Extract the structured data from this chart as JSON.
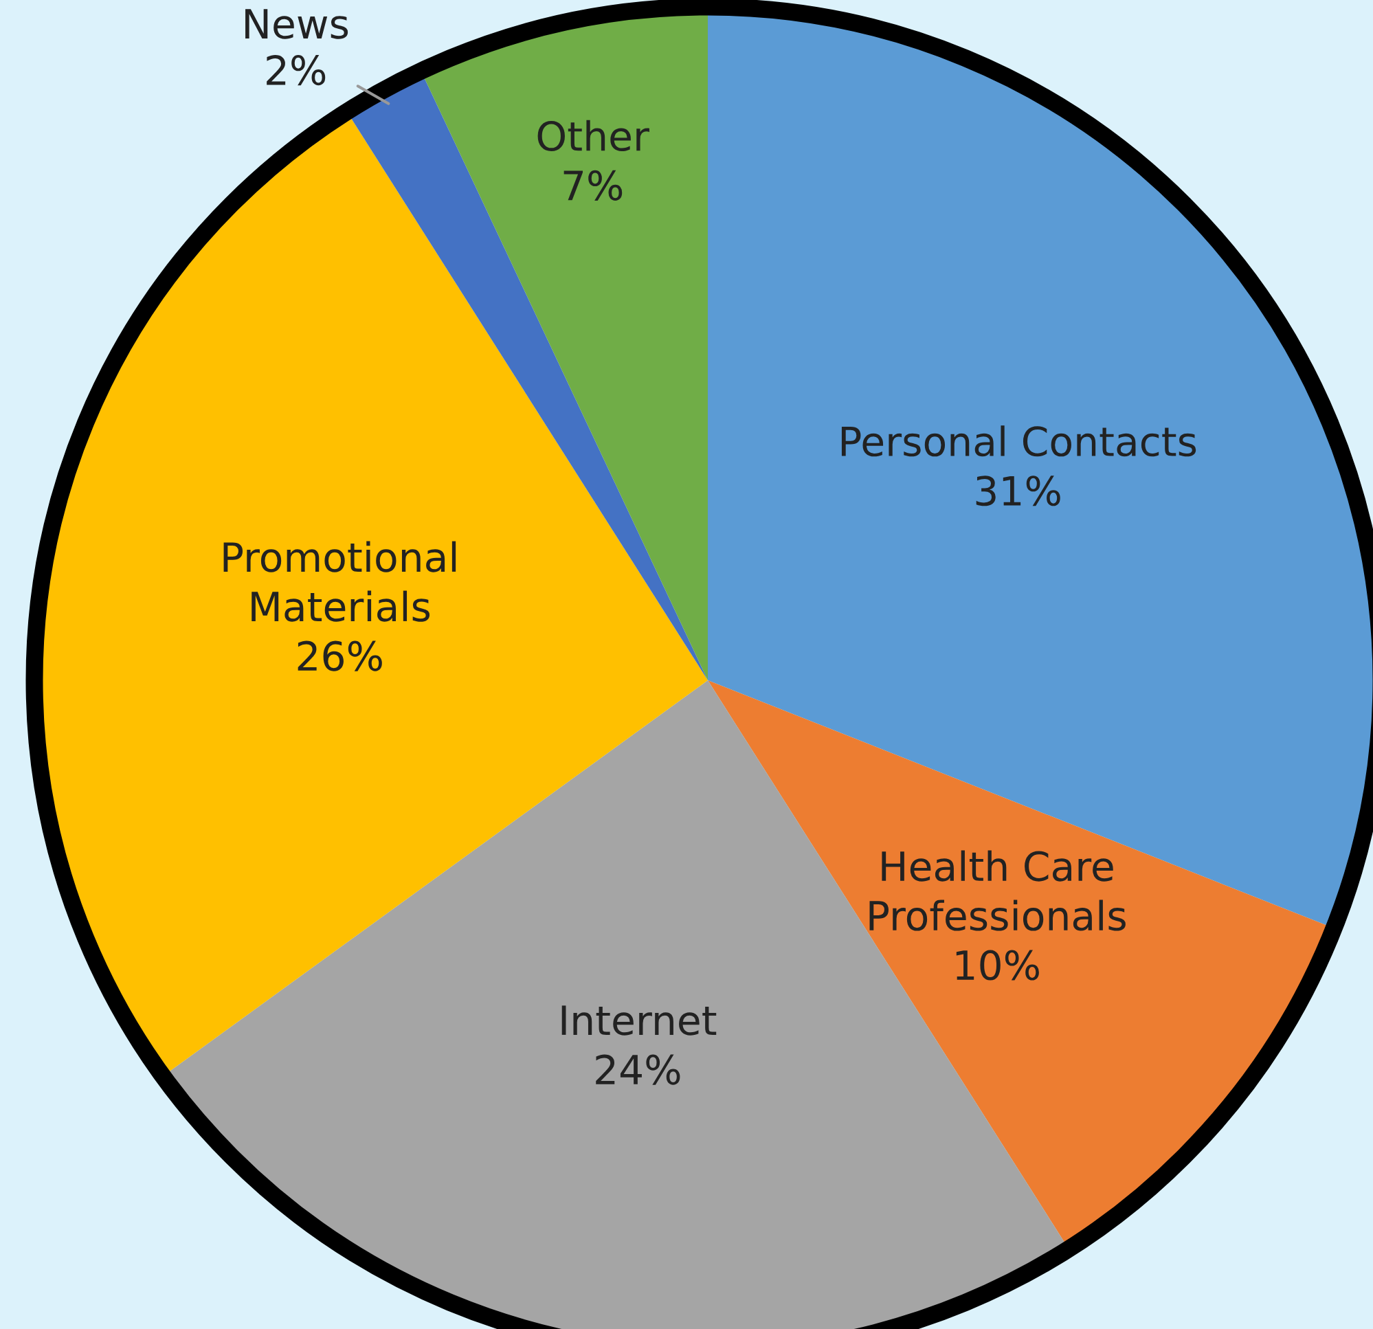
{
  "chart_data": {
    "type": "pie",
    "categories": [
      "Personal Contacts",
      "Health Care\nProfessionals",
      "Internet",
      "Promotional\nMaterials",
      "News",
      "Other"
    ],
    "values": [
      31,
      10,
      24,
      26,
      2,
      7
    ],
    "value_labels": [
      "31%",
      "10%",
      "24%",
      "26%",
      "2%",
      "7%"
    ],
    "colors": [
      "#5b9bd5",
      "#ed7d31",
      "#a5a5a5",
      "#ffc000",
      "#4472c4",
      "#70ad47"
    ],
    "legend": false
  }
}
